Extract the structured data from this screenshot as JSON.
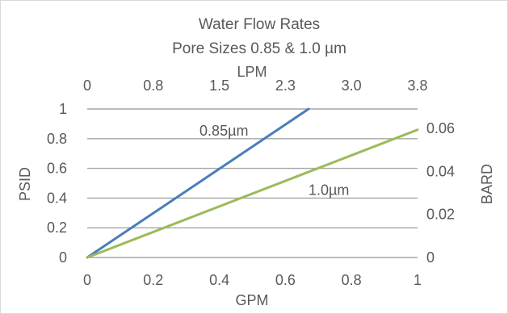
{
  "chart_data": {
    "type": "line",
    "title": "Water Flow Rates",
    "subtitle": "Pore Sizes 0.85 & 1.0 µm",
    "xlabel": "GPM",
    "ylabel": "PSID",
    "x2label": "LPM",
    "y2label": "BARD",
    "xlim": [
      0,
      1
    ],
    "ylim": [
      0,
      1
    ],
    "y2lim": [
      0,
      0.069
    ],
    "x_ticks": [
      "0",
      "0.2",
      "0.4",
      "0.6",
      "0.8",
      "1"
    ],
    "y_ticks": [
      "0",
      "0.2",
      "0.4",
      "0.6",
      "0.8",
      "1"
    ],
    "x2_ticks": [
      "0",
      "0.8",
      "1.5",
      "2.3",
      "3.0",
      "3.8"
    ],
    "y2_ticks": [
      "0",
      "0.02",
      "0.04",
      "0.06"
    ],
    "grid": true,
    "series": [
      {
        "name": "0.85µm",
        "color": "#4a7ebb",
        "x": [
          0,
          0.67
        ],
        "y": [
          0,
          1.0
        ]
      },
      {
        "name": "1.0µm",
        "color": "#9bbb59",
        "x": [
          0,
          1.0
        ],
        "y": [
          0,
          0.86
        ]
      }
    ]
  }
}
